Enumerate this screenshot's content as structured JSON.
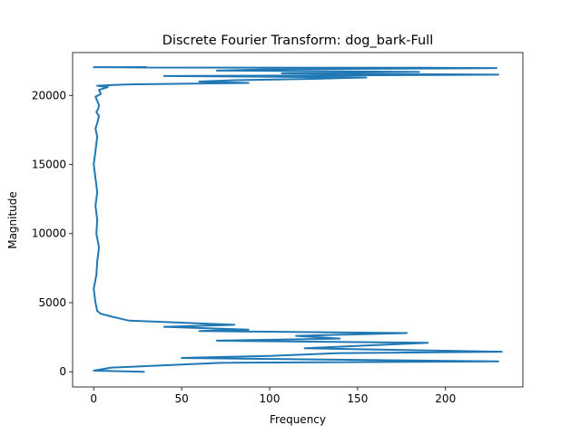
{
  "chart_data": {
    "type": "line",
    "title": "Discrete Fourier Transform: dog_bark-Full",
    "xlabel": "Frequency",
    "ylabel": "Magnitude",
    "xlim": [
      -12,
      244
    ],
    "ylim": [
      -1100,
      23100
    ],
    "xticks": [
      0,
      50,
      100,
      150,
      200
    ],
    "yticks": [
      0,
      5000,
      10000,
      15000,
      20000
    ],
    "grid": false,
    "legend": "none",
    "series_color": "#1f77b4",
    "series": [
      {
        "x": [
          29,
          0,
          10,
          72,
          230,
          50,
          100,
          140,
          232,
          120,
          190,
          70,
          140,
          115,
          178,
          60,
          88,
          40,
          80,
          20,
          10,
          4,
          2,
          1,
          0,
          1.5,
          2,
          3,
          1.5,
          2,
          1,
          2,
          1,
          0,
          1,
          2,
          1,
          2,
          3,
          1.5,
          2.5,
          3,
          2,
          1,
          4,
          3,
          8,
          2,
          20,
          88,
          60,
          80,
          125,
          155,
          40,
          230,
          107,
          185,
          70,
          110,
          200,
          229,
          185,
          28,
          0,
          30
        ],
        "y": [
          0,
          80,
          300,
          650,
          750,
          1000,
          1150,
          1350,
          1450,
          1700,
          2100,
          2250,
          2400,
          2600,
          2800,
          2950,
          3050,
          3250,
          3400,
          3700,
          4000,
          4200,
          4400,
          5000,
          6000,
          7000,
          8000,
          9000,
          10000,
          11000,
          12000,
          13000,
          14000,
          15000,
          16000,
          17000,
          17600,
          18000,
          18500,
          18800,
          19000,
          19300,
          19600,
          19900,
          20100,
          20400,
          20600,
          20700,
          20800,
          20900,
          21000,
          21100,
          21200,
          21300,
          21400,
          21500,
          21600,
          21700,
          21800,
          21900,
          21950,
          21980,
          22000,
          22020,
          22040,
          22050
        ]
      }
    ]
  }
}
